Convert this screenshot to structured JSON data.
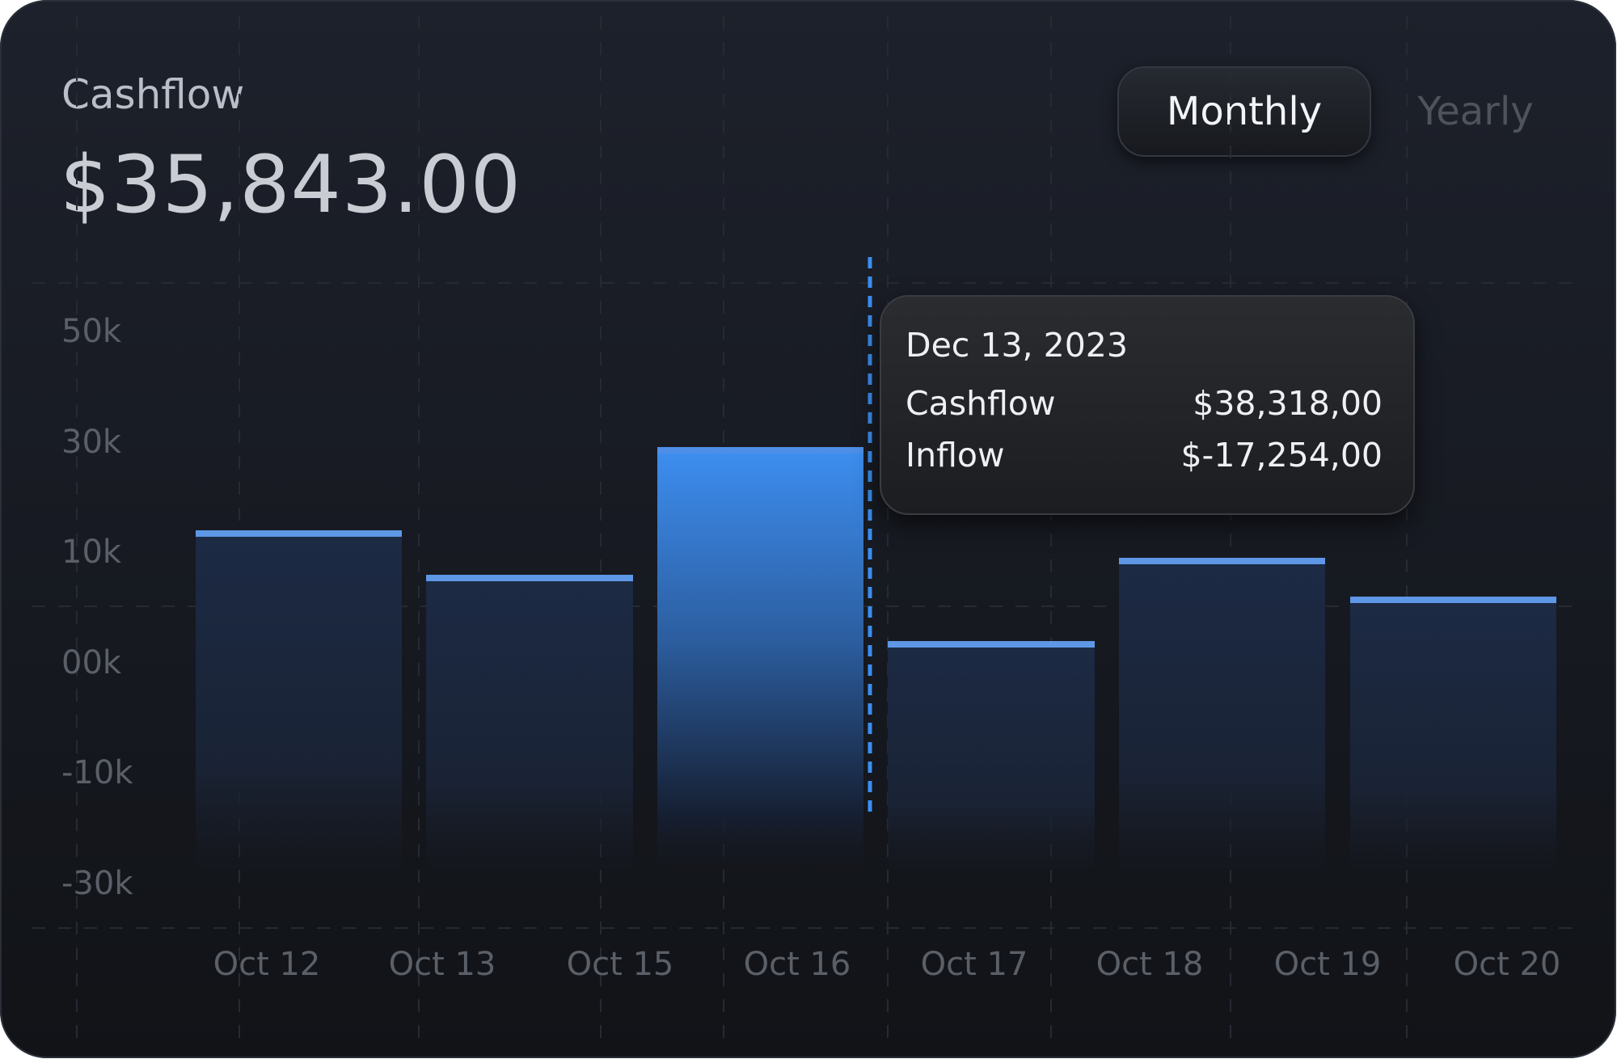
{
  "header": {
    "title": "Cashflow",
    "amount": "$35,843.00"
  },
  "toggle": {
    "monthly": "Monthly",
    "yearly": "Yearly",
    "selected": "Monthly"
  },
  "tooltip": {
    "date": "Dec 13, 2023",
    "rows": [
      {
        "label": "Cashflow",
        "value": "$38,318,00"
      },
      {
        "label": "Inflow",
        "value": "$-17,254,00"
      }
    ]
  },
  "colors": {
    "accent": "#3b8ef0",
    "bar_cap": "#5e97e6",
    "background": "#171a21"
  },
  "chart_data": {
    "type": "bar",
    "categories": [
      "Oct 12",
      "Oct 13",
      "Oct 15",
      "Oct 16",
      "Oct 17",
      "Oct 18",
      "Oct 19",
      "Oct 20"
    ],
    "y_tick_labels": [
      "50k",
      "30k",
      "10k",
      "00k",
      "-10k",
      "-30k"
    ],
    "bars": [
      {
        "label": "Oct 12",
        "value": 23
      },
      {
        "label": "Oct 13",
        "value": 15
      },
      {
        "label": "Oct 16",
        "value": 38,
        "highlighted": true
      },
      {
        "label": "Oct 17",
        "value": 3
      },
      {
        "label": "Oct 18",
        "value": 18
      },
      {
        "label": "Oct 19",
        "value": 11
      }
    ],
    "highlighted_category": "Oct 16",
    "grid": true,
    "legend": "none"
  }
}
